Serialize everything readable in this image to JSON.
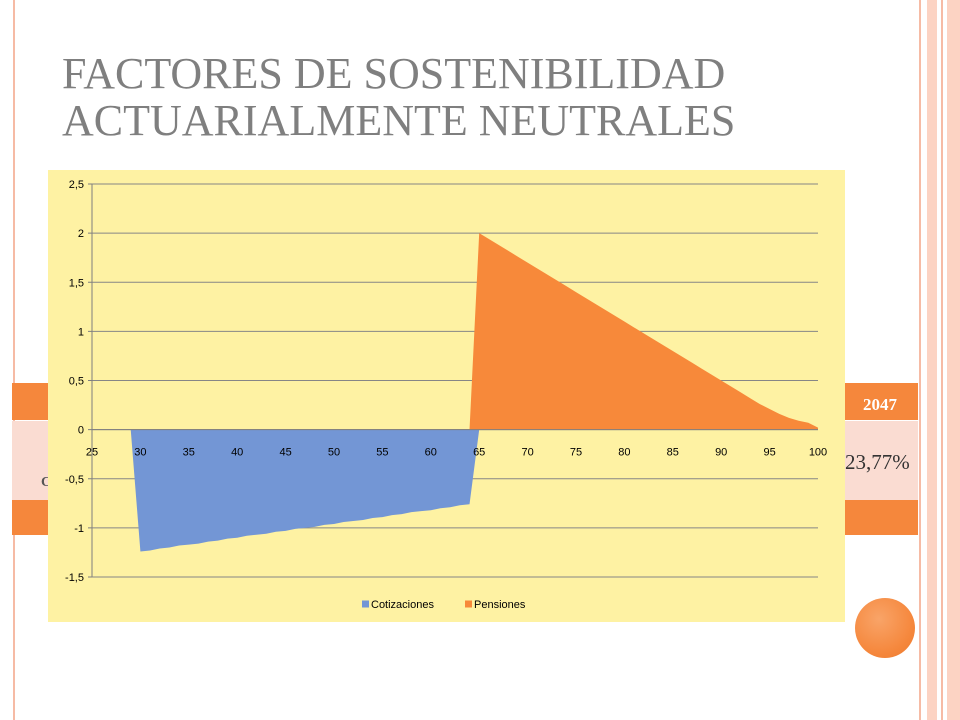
{
  "slide": {
    "title_line1": "FACTORES DE SOSTENIBILIDAD",
    "title_line2": "ACTUARIALMENTE NEUTRALES"
  },
  "table": {
    "header_year": "2047",
    "row_label": "C",
    "row_value": "23,77%"
  },
  "colors": {
    "title": "#7F7F7F",
    "orange": "#F5873C",
    "pink_row": "#FADCD2",
    "chart_background": "#FEF2A3",
    "stripe": "#F6BBA5",
    "stripe_light": "#FCD3C3",
    "gridline": "#868686",
    "axis": "#7F7F7F"
  },
  "chart_data": {
    "type": "area",
    "categories": [
      25,
      26,
      27,
      28,
      29,
      30,
      31,
      32,
      33,
      34,
      35,
      36,
      37,
      38,
      39,
      40,
      41,
      42,
      43,
      44,
      45,
      46,
      47,
      48,
      49,
      50,
      51,
      52,
      53,
      54,
      55,
      56,
      57,
      58,
      59,
      60,
      61,
      62,
      63,
      64,
      65,
      66,
      67,
      68,
      69,
      70,
      71,
      72,
      73,
      74,
      75,
      76,
      77,
      78,
      79,
      80,
      81,
      82,
      83,
      84,
      85,
      86,
      87,
      88,
      89,
      90,
      91,
      92,
      93,
      94,
      95,
      96,
      97,
      98,
      99,
      100
    ],
    "x_label_interval": 5,
    "y_tick_labels": [
      "2,5",
      "2",
      "1,5",
      "1",
      "0,5",
      "0",
      "-0,5",
      "-1",
      "-1,5"
    ],
    "ylim": [
      -1.5,
      2.5
    ],
    "y_major_unit": 0.5,
    "grid": true,
    "legend": "bottom",
    "series": [
      {
        "name": "Cotizaciones",
        "color": "#7396D5",
        "values": [
          0,
          0,
          0,
          0,
          0,
          -1.24,
          -1.23,
          -1.21,
          -1.2,
          -1.18,
          -1.17,
          -1.16,
          -1.14,
          -1.13,
          -1.11,
          -1.1,
          -1.08,
          -1.07,
          -1.06,
          -1.04,
          -1.03,
          -1.01,
          -1.0,
          -0.99,
          -0.97,
          -0.96,
          -0.94,
          -0.93,
          -0.92,
          -0.9,
          -0.89,
          -0.87,
          -0.86,
          -0.84,
          -0.83,
          -0.82,
          -0.8,
          -0.79,
          -0.77,
          -0.76,
          0,
          0,
          0,
          0,
          0,
          0,
          0,
          0,
          0,
          0,
          0,
          0,
          0,
          0,
          0,
          0,
          0,
          0,
          0,
          0,
          0,
          0,
          0,
          0,
          0,
          0,
          0,
          0,
          0,
          0,
          0,
          0,
          0,
          0,
          0,
          0
        ]
      },
      {
        "name": "Pensiones",
        "color": "#F7893A",
        "values": [
          0,
          0,
          0,
          0,
          0,
          0,
          0,
          0,
          0,
          0,
          0,
          0,
          0,
          0,
          0,
          0,
          0,
          0,
          0,
          0,
          0,
          0,
          0,
          0,
          0,
          0,
          0,
          0,
          0,
          0,
          0,
          0,
          0,
          0,
          0,
          0,
          0,
          0,
          0,
          0,
          2.0,
          1.94,
          1.88,
          1.82,
          1.76,
          1.7,
          1.64,
          1.58,
          1.52,
          1.46,
          1.4,
          1.34,
          1.28,
          1.22,
          1.16,
          1.1,
          1.04,
          0.98,
          0.92,
          0.86,
          0.8,
          0.74,
          0.68,
          0.62,
          0.56,
          0.5,
          0.44,
          0.38,
          0.32,
          0.26,
          0.21,
          0.16,
          0.12,
          0.09,
          0.07,
          0.02
        ]
      }
    ]
  }
}
